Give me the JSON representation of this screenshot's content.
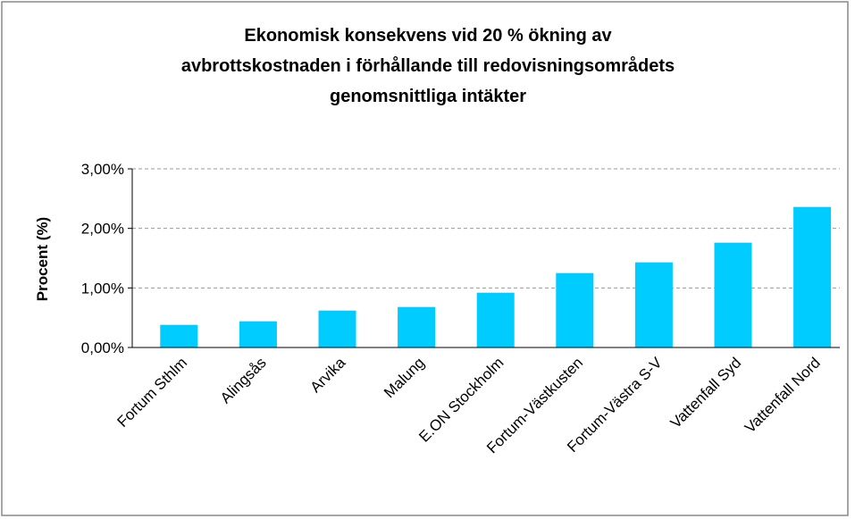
{
  "chart_data": {
    "type": "bar",
    "title": [
      "Ekonomisk konsekvens vid 20 % ökning av",
      "avbrottskostnaden i förhållande till redovisningsområdets",
      "genomsnittliga intäkter"
    ],
    "y_label": "Procent (%)",
    "categories": [
      "Fortum Sthlm",
      "Alingsås",
      "Arvika",
      "Malung",
      "E.ON Stockholm",
      "Fortum-Västkusten",
      "Fortum-Västra S-V",
      "Vattenfall Syd",
      "Vattenfall Nord"
    ],
    "values": [
      0.38,
      0.44,
      0.62,
      0.68,
      0.92,
      1.25,
      1.43,
      1.76,
      2.36
    ],
    "color": "#00ccff",
    "ylim": [
      0,
      3
    ],
    "yticks": [
      {
        "value": 0,
        "label": "0,00%"
      },
      {
        "value": 1,
        "label": "1,00%"
      },
      {
        "value": 2,
        "label": "2,00%"
      },
      {
        "value": 3,
        "label": "3,00%"
      }
    ],
    "grid": true
  }
}
